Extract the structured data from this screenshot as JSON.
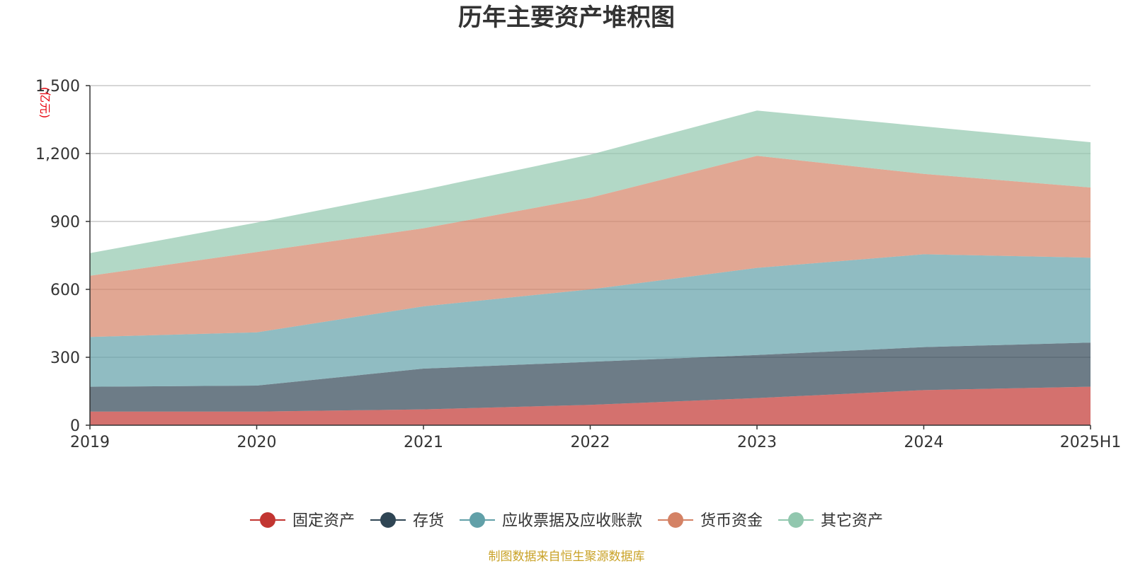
{
  "chart_data": {
    "type": "area",
    "stacked": true,
    "title": "历年主要资产堆积图",
    "y_unit": "(亿元)",
    "ylim": [
      0,
      1500
    ],
    "y_ticks": [
      0,
      300,
      600,
      900,
      1200,
      1500
    ],
    "y_tick_labels": [
      "0",
      "300",
      "600",
      "900",
      "1,200",
      "1,500"
    ],
    "categories": [
      "2019",
      "2020",
      "2021",
      "2022",
      "2023",
      "2024",
      "2025H1"
    ],
    "grid": true,
    "legend_position": "bottom",
    "series": [
      {
        "name": "固定资产",
        "color": "#c23531",
        "values": [
          60,
          60,
          70,
          90,
          120,
          155,
          170
        ]
      },
      {
        "name": "存货",
        "color": "#2f4554",
        "values": [
          110,
          115,
          180,
          190,
          190,
          190,
          195
        ]
      },
      {
        "name": "应收票据及应收账款",
        "color": "#61a0a8",
        "values": [
          220,
          235,
          275,
          320,
          385,
          410,
          375
        ]
      },
      {
        "name": "货币资金",
        "color": "#d48265",
        "values": [
          270,
          355,
          345,
          405,
          495,
          355,
          310
        ]
      },
      {
        "name": "其它资产",
        "color": "#91c7ae",
        "values": [
          100,
          130,
          170,
          190,
          200,
          210,
          200
        ]
      }
    ],
    "source_note": "制图数据来自恒生聚源数据库"
  }
}
